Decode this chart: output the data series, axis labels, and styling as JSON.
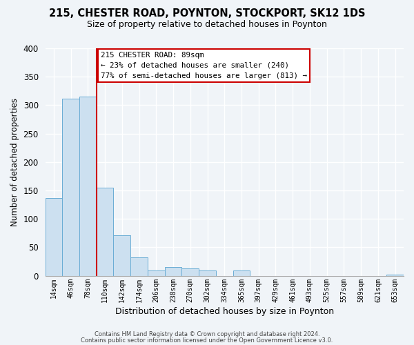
{
  "title": "215, CHESTER ROAD, POYNTON, STOCKPORT, SK12 1DS",
  "subtitle": "Size of property relative to detached houses in Poynton",
  "xlabel": "Distribution of detached houses by size in Poynton",
  "ylabel": "Number of detached properties",
  "bin_labels": [
    "14sqm",
    "46sqm",
    "78sqm",
    "110sqm",
    "142sqm",
    "174sqm",
    "206sqm",
    "238sqm",
    "270sqm",
    "302sqm",
    "334sqm",
    "365sqm",
    "397sqm",
    "429sqm",
    "461sqm",
    "493sqm",
    "525sqm",
    "557sqm",
    "589sqm",
    "621sqm",
    "653sqm"
  ],
  "bar_heights": [
    137,
    311,
    315,
    155,
    71,
    32,
    9,
    15,
    13,
    9,
    0,
    9,
    0,
    0,
    0,
    0,
    0,
    0,
    0,
    0,
    2
  ],
  "bar_color": "#cce0f0",
  "bar_edge_color": "#6aadd5",
  "vline_color": "#cc0000",
  "vline_pos": 2.5,
  "ylim": [
    0,
    400
  ],
  "yticks": [
    0,
    50,
    100,
    150,
    200,
    250,
    300,
    350,
    400
  ],
  "annotation_title": "215 CHESTER ROAD: 89sqm",
  "annotation_line1": "← 23% of detached houses are smaller (240)",
  "annotation_line2": "77% of semi-detached houses are larger (813) →",
  "annotation_box_color": "#ffffff",
  "annotation_box_edge": "#cc0000",
  "footer_line1": "Contains HM Land Registry data © Crown copyright and database right 2024.",
  "footer_line2": "Contains public sector information licensed under the Open Government Licence v3.0.",
  "background_color": "#f0f4f8",
  "grid_color": "#ffffff",
  "title_fontsize": 10.5,
  "subtitle_fontsize": 9,
  "ylabel_fontsize": 8.5,
  "xlabel_fontsize": 9
}
